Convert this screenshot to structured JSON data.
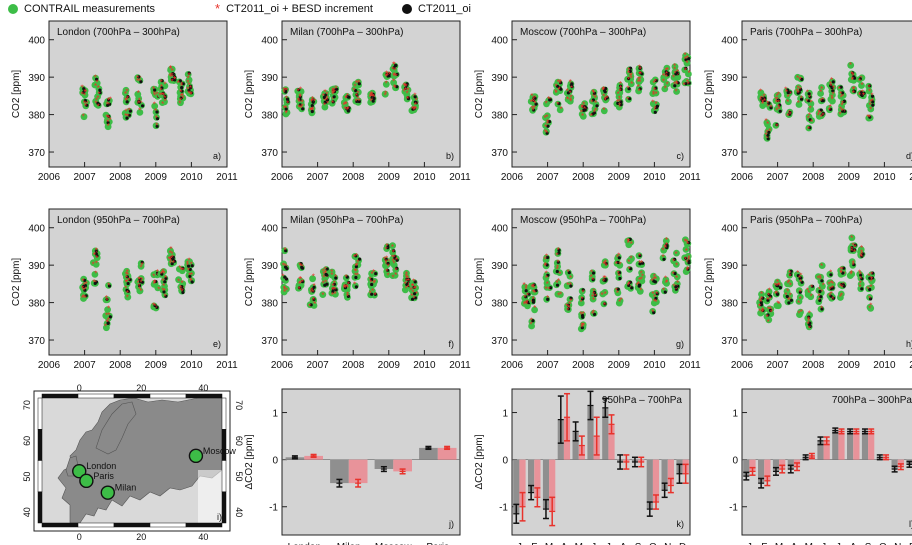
{
  "legend": {
    "contrail": {
      "label": "CONTRAIL measurements",
      "color": "#3dbd47"
    },
    "besd": {
      "label": "CT2011_oi + BESD increment",
      "color": "#e8322b"
    },
    "ct2011": {
      "label": "CT2011_oi",
      "color": "#111111"
    }
  },
  "colors": {
    "panel_bg": "#d3d3d3",
    "grey_bar": "#8f8f8f",
    "red_bar": "#e8939a",
    "red_err": "#e8322b"
  },
  "chart_data": [
    {
      "id": "a",
      "type": "scatter",
      "title": "London (700hPa – 300hPa)",
      "ylabel": "CO2 [ppm]",
      "panel_label": "a)",
      "xlim": [
        2006,
        2011
      ],
      "ylim": [
        366,
        405
      ],
      "xticks": [
        2006,
        2007,
        2008,
        2009,
        2010,
        2011
      ],
      "yticks": [
        370,
        380,
        390,
        400
      ],
      "x_tick_labels": [
        "2006",
        "2007",
        "2008",
        "2009",
        "2010",
        "2011"
      ],
      "clusters": [
        {
          "x": 2007.0,
          "y": 383,
          "spread": 4
        },
        {
          "x": 2007.35,
          "y": 386,
          "spread": 5
        },
        {
          "x": 2007.65,
          "y": 381,
          "spread": 5
        },
        {
          "x": 2008.2,
          "y": 384,
          "spread": 5
        },
        {
          "x": 2008.55,
          "y": 385,
          "spread": 5
        },
        {
          "x": 2009.0,
          "y": 382,
          "spread": 5
        },
        {
          "x": 2009.2,
          "y": 386,
          "spread": 4
        },
        {
          "x": 2009.45,
          "y": 391,
          "spread": 2
        },
        {
          "x": 2009.7,
          "y": 386,
          "spread": 3
        },
        {
          "x": 2009.95,
          "y": 388,
          "spread": 3
        }
      ]
    },
    {
      "id": "b",
      "type": "scatter",
      "title": "Milan (700hPa – 300hPa)",
      "ylabel": "CO2 [ppm]",
      "panel_label": "b)",
      "xlim": [
        2006,
        2011
      ],
      "ylim": [
        366,
        405
      ],
      "xticks": [
        2006,
        2007,
        2008,
        2009,
        2010,
        2011
      ],
      "yticks": [
        370,
        380,
        390,
        400
      ],
      "x_tick_labels": [
        "2006",
        "2007",
        "2008",
        "2009",
        "2010",
        "2011"
      ],
      "clusters": [
        {
          "x": 2006.1,
          "y": 384,
          "spread": 4
        },
        {
          "x": 2006.5,
          "y": 384,
          "spread": 3
        },
        {
          "x": 2006.85,
          "y": 382,
          "spread": 2
        },
        {
          "x": 2007.2,
          "y": 384,
          "spread": 2
        },
        {
          "x": 2007.45,
          "y": 385,
          "spread": 2
        },
        {
          "x": 2007.8,
          "y": 383,
          "spread": 2
        },
        {
          "x": 2008.1,
          "y": 386,
          "spread": 3
        },
        {
          "x": 2008.55,
          "y": 384,
          "spread": 2
        },
        {
          "x": 2008.95,
          "y": 388,
          "spread": 3
        },
        {
          "x": 2009.15,
          "y": 390,
          "spread": 3
        },
        {
          "x": 2009.5,
          "y": 386,
          "spread": 2
        },
        {
          "x": 2009.7,
          "y": 383,
          "spread": 2
        }
      ]
    },
    {
      "id": "c",
      "type": "scatter",
      "title": "Moscow (700hPa – 300hPa)",
      "ylabel": "CO2 [ppm]",
      "panel_label": "c)",
      "xlim": [
        2006,
        2011
      ],
      "ylim": [
        366,
        405
      ],
      "xticks": [
        2006,
        2007,
        2008,
        2009,
        2010,
        2011
      ],
      "yticks": [
        370,
        380,
        390,
        400
      ],
      "x_tick_labels": [
        "2006",
        "2007",
        "2008",
        "2009",
        "2010",
        "2011"
      ],
      "clusters": [
        {
          "x": 2006.6,
          "y": 383,
          "spread": 2
        },
        {
          "x": 2007.0,
          "y": 380,
          "spread": 5
        },
        {
          "x": 2007.3,
          "y": 385,
          "spread": 4
        },
        {
          "x": 2007.6,
          "y": 386,
          "spread": 3
        },
        {
          "x": 2008.0,
          "y": 381,
          "spread": 2
        },
        {
          "x": 2008.3,
          "y": 383,
          "spread": 3
        },
        {
          "x": 2008.6,
          "y": 384,
          "spread": 3
        },
        {
          "x": 2009.0,
          "y": 385,
          "spread": 4
        },
        {
          "x": 2009.3,
          "y": 388,
          "spread": 4
        },
        {
          "x": 2009.6,
          "y": 390,
          "spread": 4
        },
        {
          "x": 2010.0,
          "y": 386,
          "spread": 5
        },
        {
          "x": 2010.3,
          "y": 389,
          "spread": 4
        },
        {
          "x": 2010.6,
          "y": 389,
          "spread": 4
        },
        {
          "x": 2010.9,
          "y": 391,
          "spread": 5
        }
      ]
    },
    {
      "id": "d",
      "type": "scatter",
      "title": "Paris (700hPa – 300hPa)",
      "ylabel": "CO2 [ppm]",
      "panel_label": "d)",
      "xlim": [
        2006,
        2011
      ],
      "ylim": [
        366,
        405
      ],
      "xticks": [
        2006,
        2007,
        2008,
        2009,
        2010,
        2011
      ],
      "yticks": [
        370,
        380,
        390,
        400
      ],
      "x_tick_labels": [
        "2006",
        "2007",
        "2008",
        "2009",
        "2010",
        "2011"
      ],
      "clusters": [
        {
          "x": 2006.55,
          "y": 384,
          "spread": 2
        },
        {
          "x": 2006.75,
          "y": 378,
          "spread": 5
        },
        {
          "x": 2007.0,
          "y": 382,
          "spread": 5
        },
        {
          "x": 2007.3,
          "y": 385,
          "spread": 5
        },
        {
          "x": 2007.6,
          "y": 386,
          "spread": 4
        },
        {
          "x": 2007.9,
          "y": 381,
          "spread": 5
        },
        {
          "x": 2008.2,
          "y": 384,
          "spread": 5
        },
        {
          "x": 2008.5,
          "y": 385,
          "spread": 4
        },
        {
          "x": 2008.8,
          "y": 384,
          "spread": 4
        },
        {
          "x": 2009.1,
          "y": 389,
          "spread": 5
        },
        {
          "x": 2009.35,
          "y": 388,
          "spread": 4
        },
        {
          "x": 2009.6,
          "y": 384,
          "spread": 5
        }
      ]
    },
    {
      "id": "e",
      "type": "scatter",
      "title": "London (950hPa – 700hPa)",
      "ylabel": "CO2 [ppm]",
      "panel_label": "e)",
      "xlim": [
        2006,
        2011
      ],
      "ylim": [
        366,
        405
      ],
      "xticks": [
        2006,
        2007,
        2008,
        2009,
        2010,
        2011
      ],
      "yticks": [
        370,
        380,
        390,
        400
      ],
      "x_tick_labels": [
        "2006",
        "2007",
        "2008",
        "2009",
        "2010",
        "2011"
      ],
      "clusters": [
        {
          "x": 2007.0,
          "y": 385,
          "spread": 4
        },
        {
          "x": 2007.3,
          "y": 388,
          "spread": 6
        },
        {
          "x": 2007.65,
          "y": 379,
          "spread": 6
        },
        {
          "x": 2008.2,
          "y": 385,
          "spread": 4
        },
        {
          "x": 2008.55,
          "y": 387,
          "spread": 4
        },
        {
          "x": 2009.0,
          "y": 383,
          "spread": 5
        },
        {
          "x": 2009.2,
          "y": 386,
          "spread": 4
        },
        {
          "x": 2009.45,
          "y": 392,
          "spread": 2
        },
        {
          "x": 2009.7,
          "y": 386,
          "spread": 4
        },
        {
          "x": 2009.95,
          "y": 388,
          "spread": 3
        }
      ]
    },
    {
      "id": "f",
      "type": "scatter",
      "title": "Milan (950hPa – 700hPa)",
      "ylabel": "CO2 [ppm]",
      "panel_label": "f)",
      "xlim": [
        2006,
        2011
      ],
      "ylim": [
        366,
        405
      ],
      "xticks": [
        2006,
        2007,
        2008,
        2009,
        2010,
        2011
      ],
      "yticks": [
        370,
        380,
        390,
        400
      ],
      "x_tick_labels": [
        "2006",
        "2007",
        "2008",
        "2009",
        "2010",
        "2011"
      ],
      "clusters": [
        {
          "x": 2006.1,
          "y": 388,
          "spread": 6
        },
        {
          "x": 2006.5,
          "y": 386,
          "spread": 5
        },
        {
          "x": 2006.85,
          "y": 383,
          "spread": 4
        },
        {
          "x": 2007.2,
          "y": 386,
          "spread": 4
        },
        {
          "x": 2007.45,
          "y": 386,
          "spread": 4
        },
        {
          "x": 2007.8,
          "y": 384,
          "spread": 3
        },
        {
          "x": 2008.1,
          "y": 389,
          "spread": 5
        },
        {
          "x": 2008.55,
          "y": 386,
          "spread": 4
        },
        {
          "x": 2008.95,
          "y": 391,
          "spread": 5
        },
        {
          "x": 2009.15,
          "y": 392,
          "spread": 5
        },
        {
          "x": 2009.5,
          "y": 386,
          "spread": 3
        },
        {
          "x": 2009.7,
          "y": 383,
          "spread": 3
        }
      ]
    },
    {
      "id": "g",
      "type": "scatter",
      "title": "Moscow (950hPa – 700hPa)",
      "ylabel": "CO2 [ppm]",
      "panel_label": "g)",
      "xlim": [
        2006,
        2011
      ],
      "ylim": [
        366,
        405
      ],
      "xticks": [
        2006,
        2007,
        2008,
        2009,
        2010,
        2011
      ],
      "yticks": [
        370,
        380,
        390,
        400
      ],
      "x_tick_labels": [
        "2006",
        "2007",
        "2008",
        "2009",
        "2010",
        "2011"
      ],
      "clusters": [
        {
          "x": 2006.4,
          "y": 382,
          "spread": 3
        },
        {
          "x": 2006.6,
          "y": 378,
          "spread": 8
        },
        {
          "x": 2007.0,
          "y": 386,
          "spread": 6
        },
        {
          "x": 2007.3,
          "y": 388,
          "spread": 6
        },
        {
          "x": 2007.6,
          "y": 384,
          "spread": 6
        },
        {
          "x": 2008.0,
          "y": 378,
          "spread": 6
        },
        {
          "x": 2008.3,
          "y": 382,
          "spread": 6
        },
        {
          "x": 2008.6,
          "y": 385,
          "spread": 6
        },
        {
          "x": 2009.0,
          "y": 386,
          "spread": 7
        },
        {
          "x": 2009.3,
          "y": 390,
          "spread": 7
        },
        {
          "x": 2009.6,
          "y": 388,
          "spread": 7
        },
        {
          "x": 2010.0,
          "y": 384,
          "spread": 7
        },
        {
          "x": 2010.3,
          "y": 390,
          "spread": 7
        },
        {
          "x": 2010.6,
          "y": 390,
          "spread": 7
        },
        {
          "x": 2010.9,
          "y": 394,
          "spread": 7
        }
      ]
    },
    {
      "id": "h",
      "type": "scatter",
      "title": "Paris (950hPa – 700hPa)",
      "ylabel": "CO2 [ppm]",
      "panel_label": "h)",
      "xlim": [
        2006,
        2011
      ],
      "ylim": [
        366,
        405
      ],
      "xticks": [
        2006,
        2007,
        2008,
        2009,
        2010,
        2011
      ],
      "yticks": [
        370,
        380,
        390,
        400
      ],
      "x_tick_labels": [
        "2006",
        "2007",
        "2008",
        "2009",
        "2010",
        "2011"
      ],
      "clusters": [
        {
          "x": 2006.55,
          "y": 380,
          "spread": 3
        },
        {
          "x": 2006.75,
          "y": 378,
          "spread": 5
        },
        {
          "x": 2007.0,
          "y": 383,
          "spread": 6
        },
        {
          "x": 2007.3,
          "y": 385,
          "spread": 6
        },
        {
          "x": 2007.6,
          "y": 382,
          "spread": 6
        },
        {
          "x": 2007.9,
          "y": 379,
          "spread": 6
        },
        {
          "x": 2008.2,
          "y": 384,
          "spread": 6
        },
        {
          "x": 2008.5,
          "y": 385,
          "spread": 5
        },
        {
          "x": 2008.8,
          "y": 386,
          "spread": 5
        },
        {
          "x": 2009.1,
          "y": 392,
          "spread": 6
        },
        {
          "x": 2009.35,
          "y": 389,
          "spread": 6
        },
        {
          "x": 2009.6,
          "y": 383,
          "spread": 5
        }
      ]
    },
    {
      "id": "j",
      "type": "bar",
      "title": "",
      "ylabel": "ΔCO2 [ppm]",
      "panel_label": "j)",
      "ylim": [
        -1.6,
        1.5
      ],
      "yticks": [
        -1,
        0,
        1
      ],
      "categories": [
        "London",
        "Milan",
        "Moscow",
        "Paris"
      ],
      "series": [
        {
          "color": "grey",
          "values": [
            0.05,
            -0.5,
            -0.2,
            0.25
          ],
          "errors": [
            0.03,
            0.08,
            0.05,
            0.03
          ]
        },
        {
          "color": "red",
          "values": [
            0.08,
            -0.5,
            -0.25,
            0.25
          ],
          "errors": [
            0.03,
            0.08,
            0.05,
            0.03
          ]
        }
      ]
    },
    {
      "id": "k",
      "type": "bar",
      "title": "950hPa – 700hPa",
      "ylabel": "ΔCO2 [ppm]",
      "panel_label": "k)",
      "ylim": [
        -1.6,
        1.5
      ],
      "yticks": [
        -1,
        0,
        1
      ],
      "categories": [
        "J",
        "F",
        "M",
        "A",
        "M",
        "J",
        "J",
        "A",
        "S",
        "O",
        "N",
        "D"
      ],
      "series": [
        {
          "color": "grey",
          "values": [
            -1.15,
            -0.7,
            -1.05,
            0.85,
            0.6,
            1.15,
            1.1,
            -0.05,
            -0.05,
            -1.05,
            -0.65,
            -0.3
          ],
          "errors": [
            0.2,
            0.15,
            0.2,
            0.5,
            0.2,
            0.3,
            0.2,
            0.15,
            0.1,
            0.15,
            0.15,
            0.2
          ]
        },
        {
          "color": "red",
          "values": [
            -1.0,
            -0.8,
            -1.1,
            0.9,
            0.3,
            0.5,
            0.75,
            -0.05,
            -0.05,
            -0.9,
            -0.55,
            -0.3
          ],
          "errors": [
            0.3,
            0.2,
            0.3,
            0.5,
            0.2,
            0.4,
            0.2,
            0.15,
            0.1,
            0.15,
            0.15,
            0.2
          ]
        }
      ]
    },
    {
      "id": "l",
      "type": "bar",
      "title": "700hPa – 300hPa",
      "ylabel": "",
      "panel_label": "l)",
      "ylim": [
        -1.6,
        1.5
      ],
      "yticks": [
        -1,
        0,
        1
      ],
      "categories": [
        "J",
        "F",
        "M",
        "A",
        "M",
        "J",
        "J",
        "A",
        "S",
        "O",
        "N",
        "D"
      ],
      "series": [
        {
          "color": "grey",
          "values": [
            -0.35,
            -0.5,
            -0.25,
            -0.2,
            0.05,
            0.4,
            0.62,
            0.6,
            0.6,
            0.05,
            -0.2,
            -0.1
          ],
          "errors": [
            0.08,
            0.1,
            0.08,
            0.08,
            0.05,
            0.08,
            0.05,
            0.05,
            0.05,
            0.05,
            0.06,
            0.06
          ]
        },
        {
          "color": "red",
          "values": [
            -0.25,
            -0.45,
            -0.2,
            -0.15,
            0.08,
            0.4,
            0.6,
            0.6,
            0.6,
            0.05,
            -0.15,
            -0.05
          ],
          "errors": [
            0.08,
            0.1,
            0.08,
            0.08,
            0.05,
            0.08,
            0.05,
            0.05,
            0.05,
            0.05,
            0.06,
            0.06
          ]
        }
      ]
    }
  ],
  "map": {
    "panel_label": "i)",
    "top_ticks": [
      "0",
      "20",
      "40"
    ],
    "bottom_ticks": [
      "0",
      "20",
      "40"
    ],
    "left_ticks": [
      "40",
      "50",
      "60",
      "70"
    ],
    "right_ticks": [
      "40",
      "50",
      "60",
      "70"
    ],
    "cities": [
      {
        "name": "London",
        "lon": 0,
        "lat": 51.5
      },
      {
        "name": "Paris",
        "lon": 2.3,
        "lat": 48.8
      },
      {
        "name": "Milan",
        "lon": 9.2,
        "lat": 45.5
      },
      {
        "name": "Moscow",
        "lon": 37.6,
        "lat": 55.8
      }
    ]
  }
}
